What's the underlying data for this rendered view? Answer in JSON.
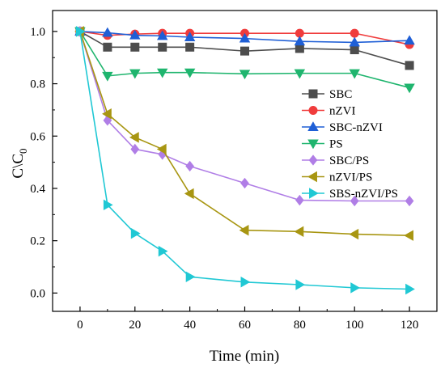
{
  "chart_data": {
    "type": "line",
    "xlabel": "Time (min)",
    "ylabel_main": "C\\C",
    "ylabel_sub": "0",
    "x_ticks": [
      0,
      20,
      40,
      60,
      80,
      100,
      120
    ],
    "y_ticks": [
      "0.0",
      "0.2",
      "0.4",
      "0.6",
      "0.8",
      "1.0"
    ],
    "y_tick_values": [
      0.0,
      0.2,
      0.4,
      0.6,
      0.8,
      1.0
    ],
    "xlim": [
      -10,
      130
    ],
    "ylim": [
      -0.07,
      1.08
    ],
    "legend_position": "right",
    "grid": false,
    "series": [
      {
        "name": "SBC",
        "color": "#4d4d4d",
        "marker": "square",
        "x": [
          0,
          10,
          20,
          30,
          40,
          60,
          80,
          100,
          120
        ],
        "values": [
          1.0,
          0.94,
          0.94,
          0.94,
          0.94,
          0.925,
          0.935,
          0.93,
          0.87
        ]
      },
      {
        "name": "nZVI",
        "color": "#f03c3c",
        "marker": "circle",
        "x": [
          0,
          10,
          20,
          30,
          40,
          60,
          80,
          100,
          120
        ],
        "values": [
          1.0,
          0.985,
          0.99,
          0.993,
          0.993,
          0.993,
          0.993,
          0.993,
          0.95
        ]
      },
      {
        "name": "SBC-nZVI",
        "color": "#1f5fd6",
        "marker": "triangle-up",
        "x": [
          0,
          10,
          20,
          30,
          40,
          60,
          80,
          100,
          120
        ],
        "values": [
          1.0,
          0.995,
          0.985,
          0.983,
          0.978,
          0.973,
          0.962,
          0.958,
          0.965
        ]
      },
      {
        "name": "PS",
        "color": "#1fb56e",
        "marker": "triangle-down",
        "x": [
          0,
          10,
          20,
          30,
          40,
          60,
          80,
          100,
          120
        ],
        "values": [
          1.0,
          0.83,
          0.84,
          0.843,
          0.843,
          0.838,
          0.84,
          0.84,
          0.785
        ]
      },
      {
        "name": "SBC/PS",
        "color": "#b07ee6",
        "marker": "diamond",
        "x": [
          0,
          10,
          20,
          30,
          40,
          60,
          80,
          100,
          120
        ],
        "values": [
          1.0,
          0.66,
          0.55,
          0.53,
          0.485,
          0.42,
          0.355,
          0.352,
          0.352
        ]
      },
      {
        "name": "nZVI/PS",
        "color": "#a89612",
        "marker": "triangle-left",
        "x": [
          0,
          10,
          20,
          30,
          40,
          60,
          80,
          100,
          120
        ],
        "values": [
          1.0,
          0.685,
          0.595,
          0.55,
          0.38,
          0.24,
          0.235,
          0.225,
          0.22
        ]
      },
      {
        "name": "SBS-nZVI/PS",
        "color": "#20c8d4",
        "marker": "triangle-right",
        "x": [
          0,
          10,
          20,
          30,
          40,
          60,
          80,
          100,
          120
        ],
        "values": [
          1.0,
          0.337,
          0.228,
          0.16,
          0.062,
          0.042,
          0.032,
          0.02,
          0.015
        ]
      }
    ]
  }
}
